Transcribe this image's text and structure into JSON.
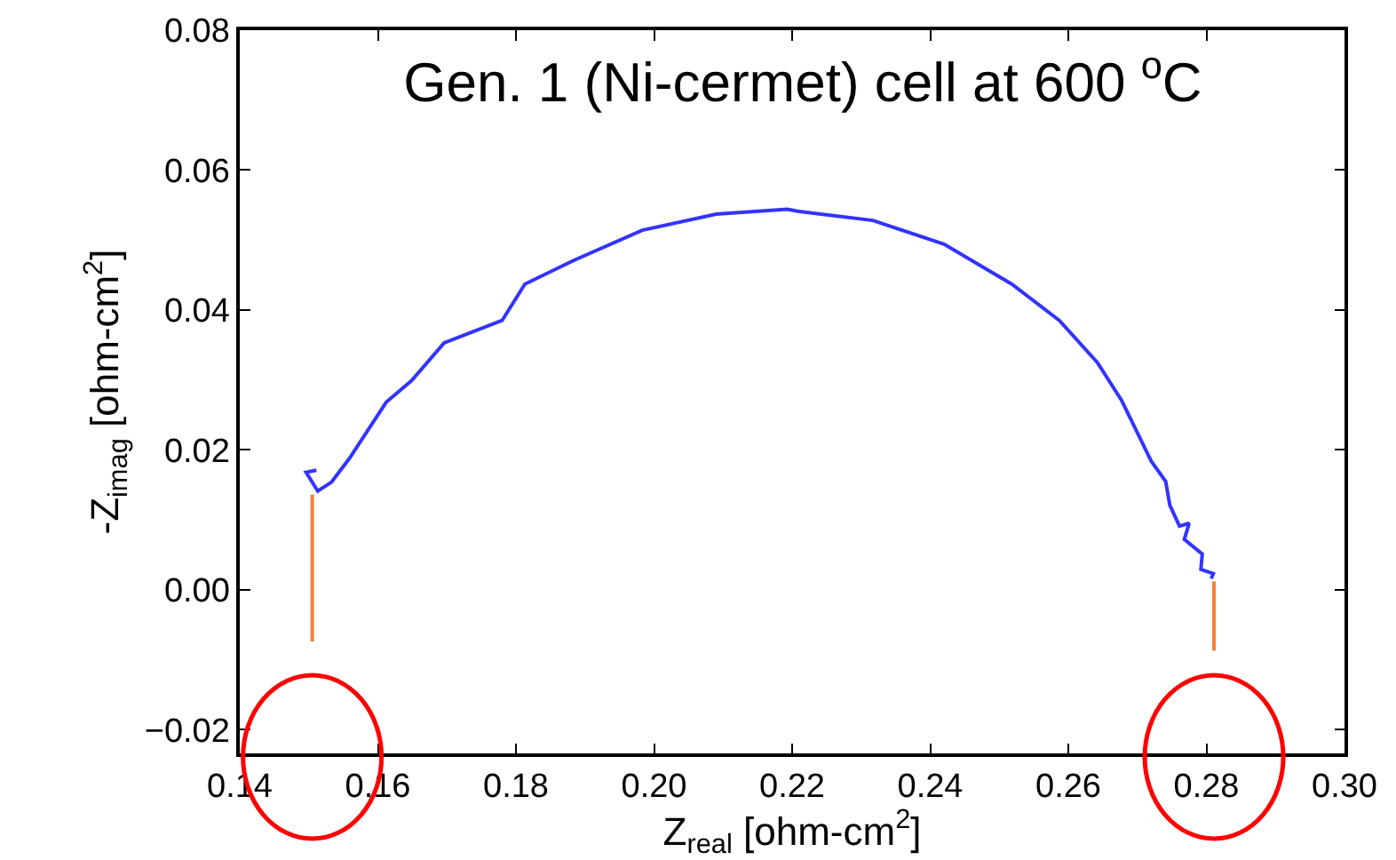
{
  "chart_data": {
    "type": "line",
    "title": "Gen. 1 (Ni-cermet) cell at 600 $^{o}$C",
    "xlabel": "Z$_{real}$ [ohm-cm$^{2}$]",
    "ylabel": "-Z$_{imag}$ [ohm-cm$^{2}$]",
    "xlim": [
      0.14,
      0.3
    ],
    "ylim": [
      -0.0234,
      0.08
    ],
    "xticks": [
      0.14,
      0.16,
      0.18,
      {
        "value": 0.2,
        "label": "0.20"
      },
      0.22,
      0.24,
      0.26,
      0.28,
      {
        "value": 0.3,
        "label": "0.30"
      }
    ],
    "yticks": [
      {
        "value": -0.02,
        "label": "−0.02"
      },
      {
        "value": 0,
        "label": "0.00"
      },
      0.02,
      0.04,
      0.06,
      0.08
    ],
    "grid": false,
    "marker": "none",
    "line_style": "solid",
    "series": [
      {
        "color": "#3333ff",
        "x": [
          0.1511,
          0.1496,
          0.1513,
          0.1533,
          0.1559,
          0.1612,
          0.1649,
          0.1696,
          0.178,
          0.1813,
          0.1884,
          0.1983,
          0.209,
          0.2193,
          0.221,
          0.2317,
          0.242,
          0.2518,
          0.2587,
          0.2642,
          0.2677,
          0.272,
          0.2741,
          0.2747,
          0.2761,
          0.2775,
          0.2768,
          0.2794,
          0.2792,
          0.281,
          0.2807
        ],
        "values": [
          0.0171,
          0.0168,
          0.0141,
          0.0154,
          0.0188,
          0.0268,
          0.0299,
          0.0353,
          0.0385,
          0.0437,
          0.0471,
          0.0514,
          0.0537,
          0.0544,
          0.0541,
          0.0528,
          0.0494,
          0.0437,
          0.0385,
          0.0325,
          0.0271,
          0.0184,
          0.0155,
          0.0121,
          0.0091,
          0.0095,
          0.0072,
          0.0051,
          0.0029,
          0.0023,
          0.0016
        ]
      },
      {
        "color": "#f0803c",
        "x": [
          0.1505,
          0.1505
        ],
        "values": [
          0.0136,
          -0.0074
        ]
      },
      {
        "color": "#f0803c",
        "x": [
          0.2811,
          0.2811
        ],
        "values": [
          0.0012,
          -0.0087
        ]
      }
    ]
  }
}
